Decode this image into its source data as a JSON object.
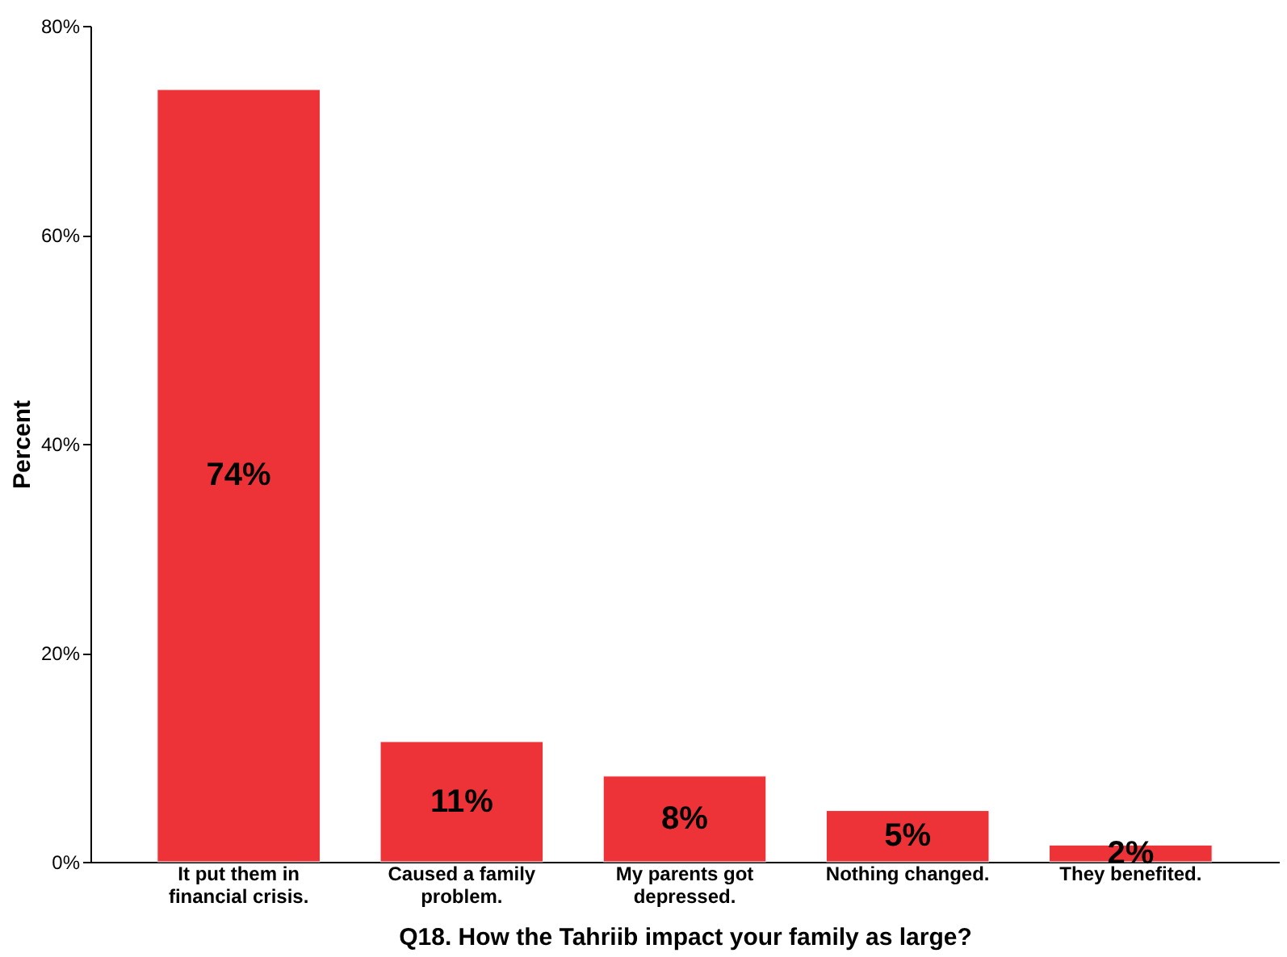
{
  "chart_data": {
    "type": "bar",
    "xlabel": "Q18. How the Tahriib impact your family as large?",
    "ylabel": "Percent",
    "categories": [
      "It put them in financial crisis.",
      "Caused a family problem.",
      "My parents got depressed.",
      "Nothing changed.",
      "They benefited."
    ],
    "values": [
      73.9,
      11.5,
      8.2,
      4.9,
      1.6
    ],
    "value_labels": [
      "74%",
      "11%",
      "8%",
      "5%",
      "2%"
    ],
    "color": "#ee3338",
    "ylim": [
      0,
      80
    ],
    "yticks": [
      {
        "value": 0,
        "label": "0%"
      },
      {
        "value": 20,
        "label": "20%"
      },
      {
        "value": 40,
        "label": "40%"
      },
      {
        "value": 60,
        "label": "60%"
      },
      {
        "value": 80,
        "label": "80%"
      }
    ],
    "grid": false
  }
}
